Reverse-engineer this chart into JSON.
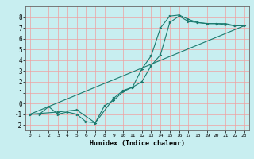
{
  "xlabel": "Humidex (Indice chaleur)",
  "bg_color": "#c8eef0",
  "grid_color": "#f0a0a0",
  "line_color": "#1a7a6e",
  "xlim": [
    -0.5,
    23.5
  ],
  "ylim": [
    -2.5,
    9.0
  ],
  "xticks": [
    0,
    1,
    2,
    3,
    4,
    5,
    6,
    7,
    8,
    9,
    10,
    11,
    12,
    13,
    14,
    15,
    16,
    17,
    18,
    19,
    20,
    21,
    22,
    23
  ],
  "yticks": [
    -2,
    -1,
    0,
    1,
    2,
    3,
    4,
    5,
    6,
    7,
    8
  ],
  "line1_x": [
    0,
    1,
    2,
    3,
    4,
    5,
    6,
    7,
    8,
    9,
    10,
    11,
    12,
    13,
    14,
    15,
    16,
    17,
    18,
    19,
    20,
    21,
    22,
    23
  ],
  "line1_y": [
    -1,
    -1,
    -0.3,
    -1,
    -0.8,
    -1,
    -1.7,
    -1.8,
    -0.2,
    0.3,
    1.1,
    1.5,
    3.2,
    4.4,
    7.0,
    8.1,
    8.2,
    7.8,
    7.5,
    7.4,
    7.4,
    7.4,
    7.2,
    7.2
  ],
  "line2_x": [
    0,
    3,
    5,
    7,
    9,
    10,
    11,
    12,
    13,
    14,
    15,
    16,
    17,
    18,
    19,
    20,
    21,
    22,
    23
  ],
  "line2_y": [
    -1,
    -0.8,
    -0.6,
    -1.8,
    0.5,
    1.2,
    1.5,
    2.0,
    3.5,
    4.5,
    7.5,
    8.1,
    7.6,
    7.5,
    7.4,
    7.4,
    7.3,
    7.2,
    7.2
  ],
  "line3_x": [
    0,
    23
  ],
  "line3_y": [
    -1,
    7.2
  ]
}
